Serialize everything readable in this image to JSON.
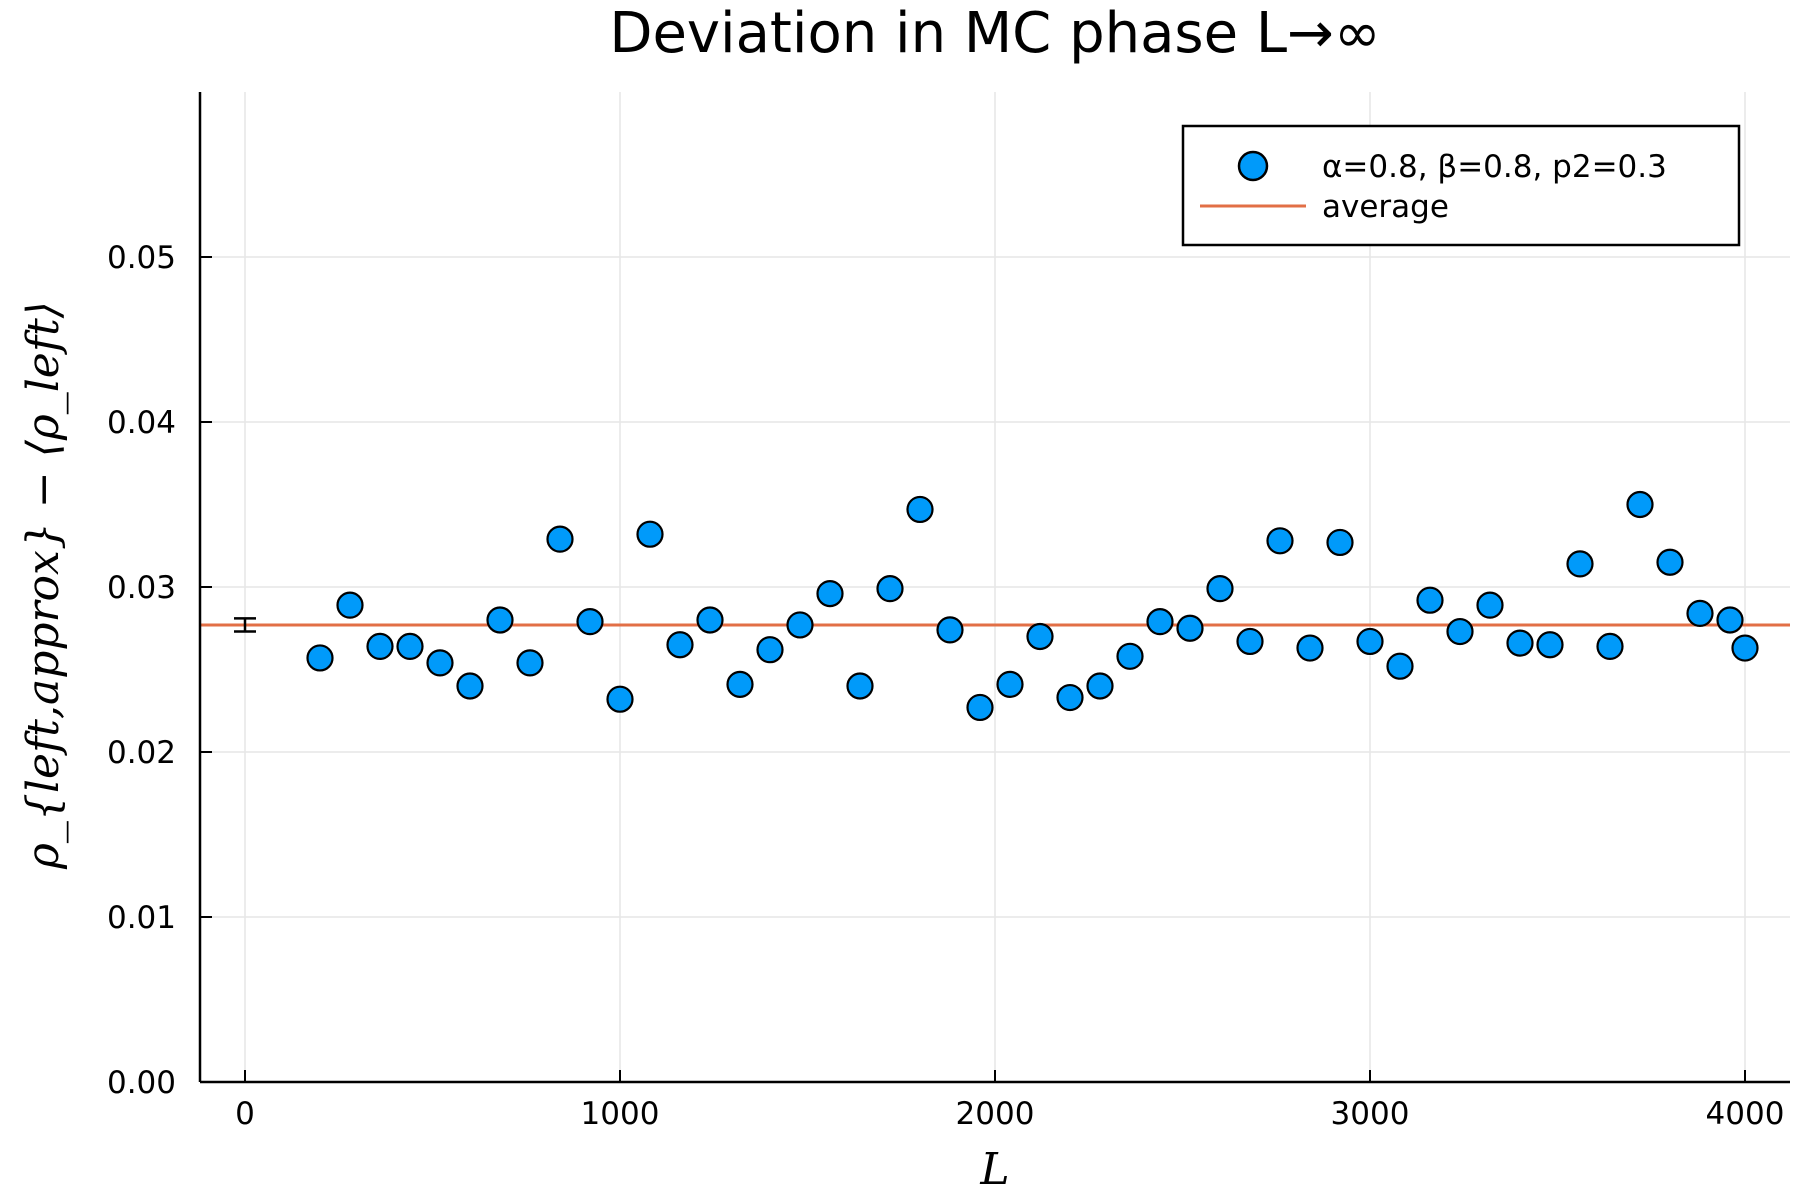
{
  "chart_data": {
    "type": "scatter",
    "title": "Deviation in MC phase L→∞",
    "xlabel": "L",
    "ylabel": "ρ_{left,approx} − ⟨ρ_left⟩",
    "xlim": [
      -120,
      4120
    ],
    "ylim": [
      0.0,
      0.06
    ],
    "xticks": [
      0,
      1000,
      2000,
      3000,
      4000
    ],
    "xtick_labels": [
      "0",
      "1000",
      "2000",
      "3000",
      "4000"
    ],
    "yticks": [
      0.0,
      0.01,
      0.02,
      0.03,
      0.04,
      0.05
    ],
    "ytick_labels": [
      "0.00",
      "0.01",
      "0.02",
      "0.03",
      "0.04",
      "0.05"
    ],
    "grid": true,
    "legend_position": "top-right",
    "series": [
      {
        "name": "α=0.8, β=0.8, p2=0.3",
        "kind": "scatter",
        "color": "#009AFA",
        "x": [
          200,
          280,
          360,
          440,
          520,
          600,
          680,
          760,
          840,
          920,
          1000,
          1080,
          1160,
          1240,
          1320,
          1400,
          1480,
          1560,
          1640,
          1720,
          1800,
          1880,
          1960,
          2040,
          2120,
          2200,
          2280,
          2360,
          2440,
          2520,
          2600,
          2680,
          2760,
          2840,
          2920,
          3000,
          3080,
          3160,
          3240,
          3320,
          3400,
          3480,
          3560,
          3640,
          3720,
          3800,
          3880,
          3960,
          4000
        ],
        "y": [
          0.0257,
          0.0289,
          0.0264,
          0.0264,
          0.0254,
          0.024,
          0.028,
          0.0254,
          0.0329,
          0.0279,
          0.0232,
          0.0332,
          0.0265,
          0.028,
          0.0241,
          0.0262,
          0.0277,
          0.0296,
          0.024,
          0.0299,
          0.0347,
          0.0274,
          0.0227,
          0.0241,
          0.027,
          0.0233,
          0.024,
          0.0258,
          0.0279,
          0.0275,
          0.0299,
          0.0267,
          0.0328,
          0.0263,
          0.0327,
          0.0267,
          0.0252,
          0.0292,
          0.0273,
          0.0289,
          0.0266,
          0.0265,
          0.0314,
          0.0264,
          0.035,
          0.0315,
          0.0284,
          0.028,
          0.0263
        ]
      },
      {
        "name": "average",
        "kind": "hline",
        "color": "#E26F46",
        "y": 0.0277
      }
    ],
    "error_bar": {
      "x": 0,
      "y": 0.0277,
      "err": 0.0004,
      "color": "#000000"
    }
  }
}
